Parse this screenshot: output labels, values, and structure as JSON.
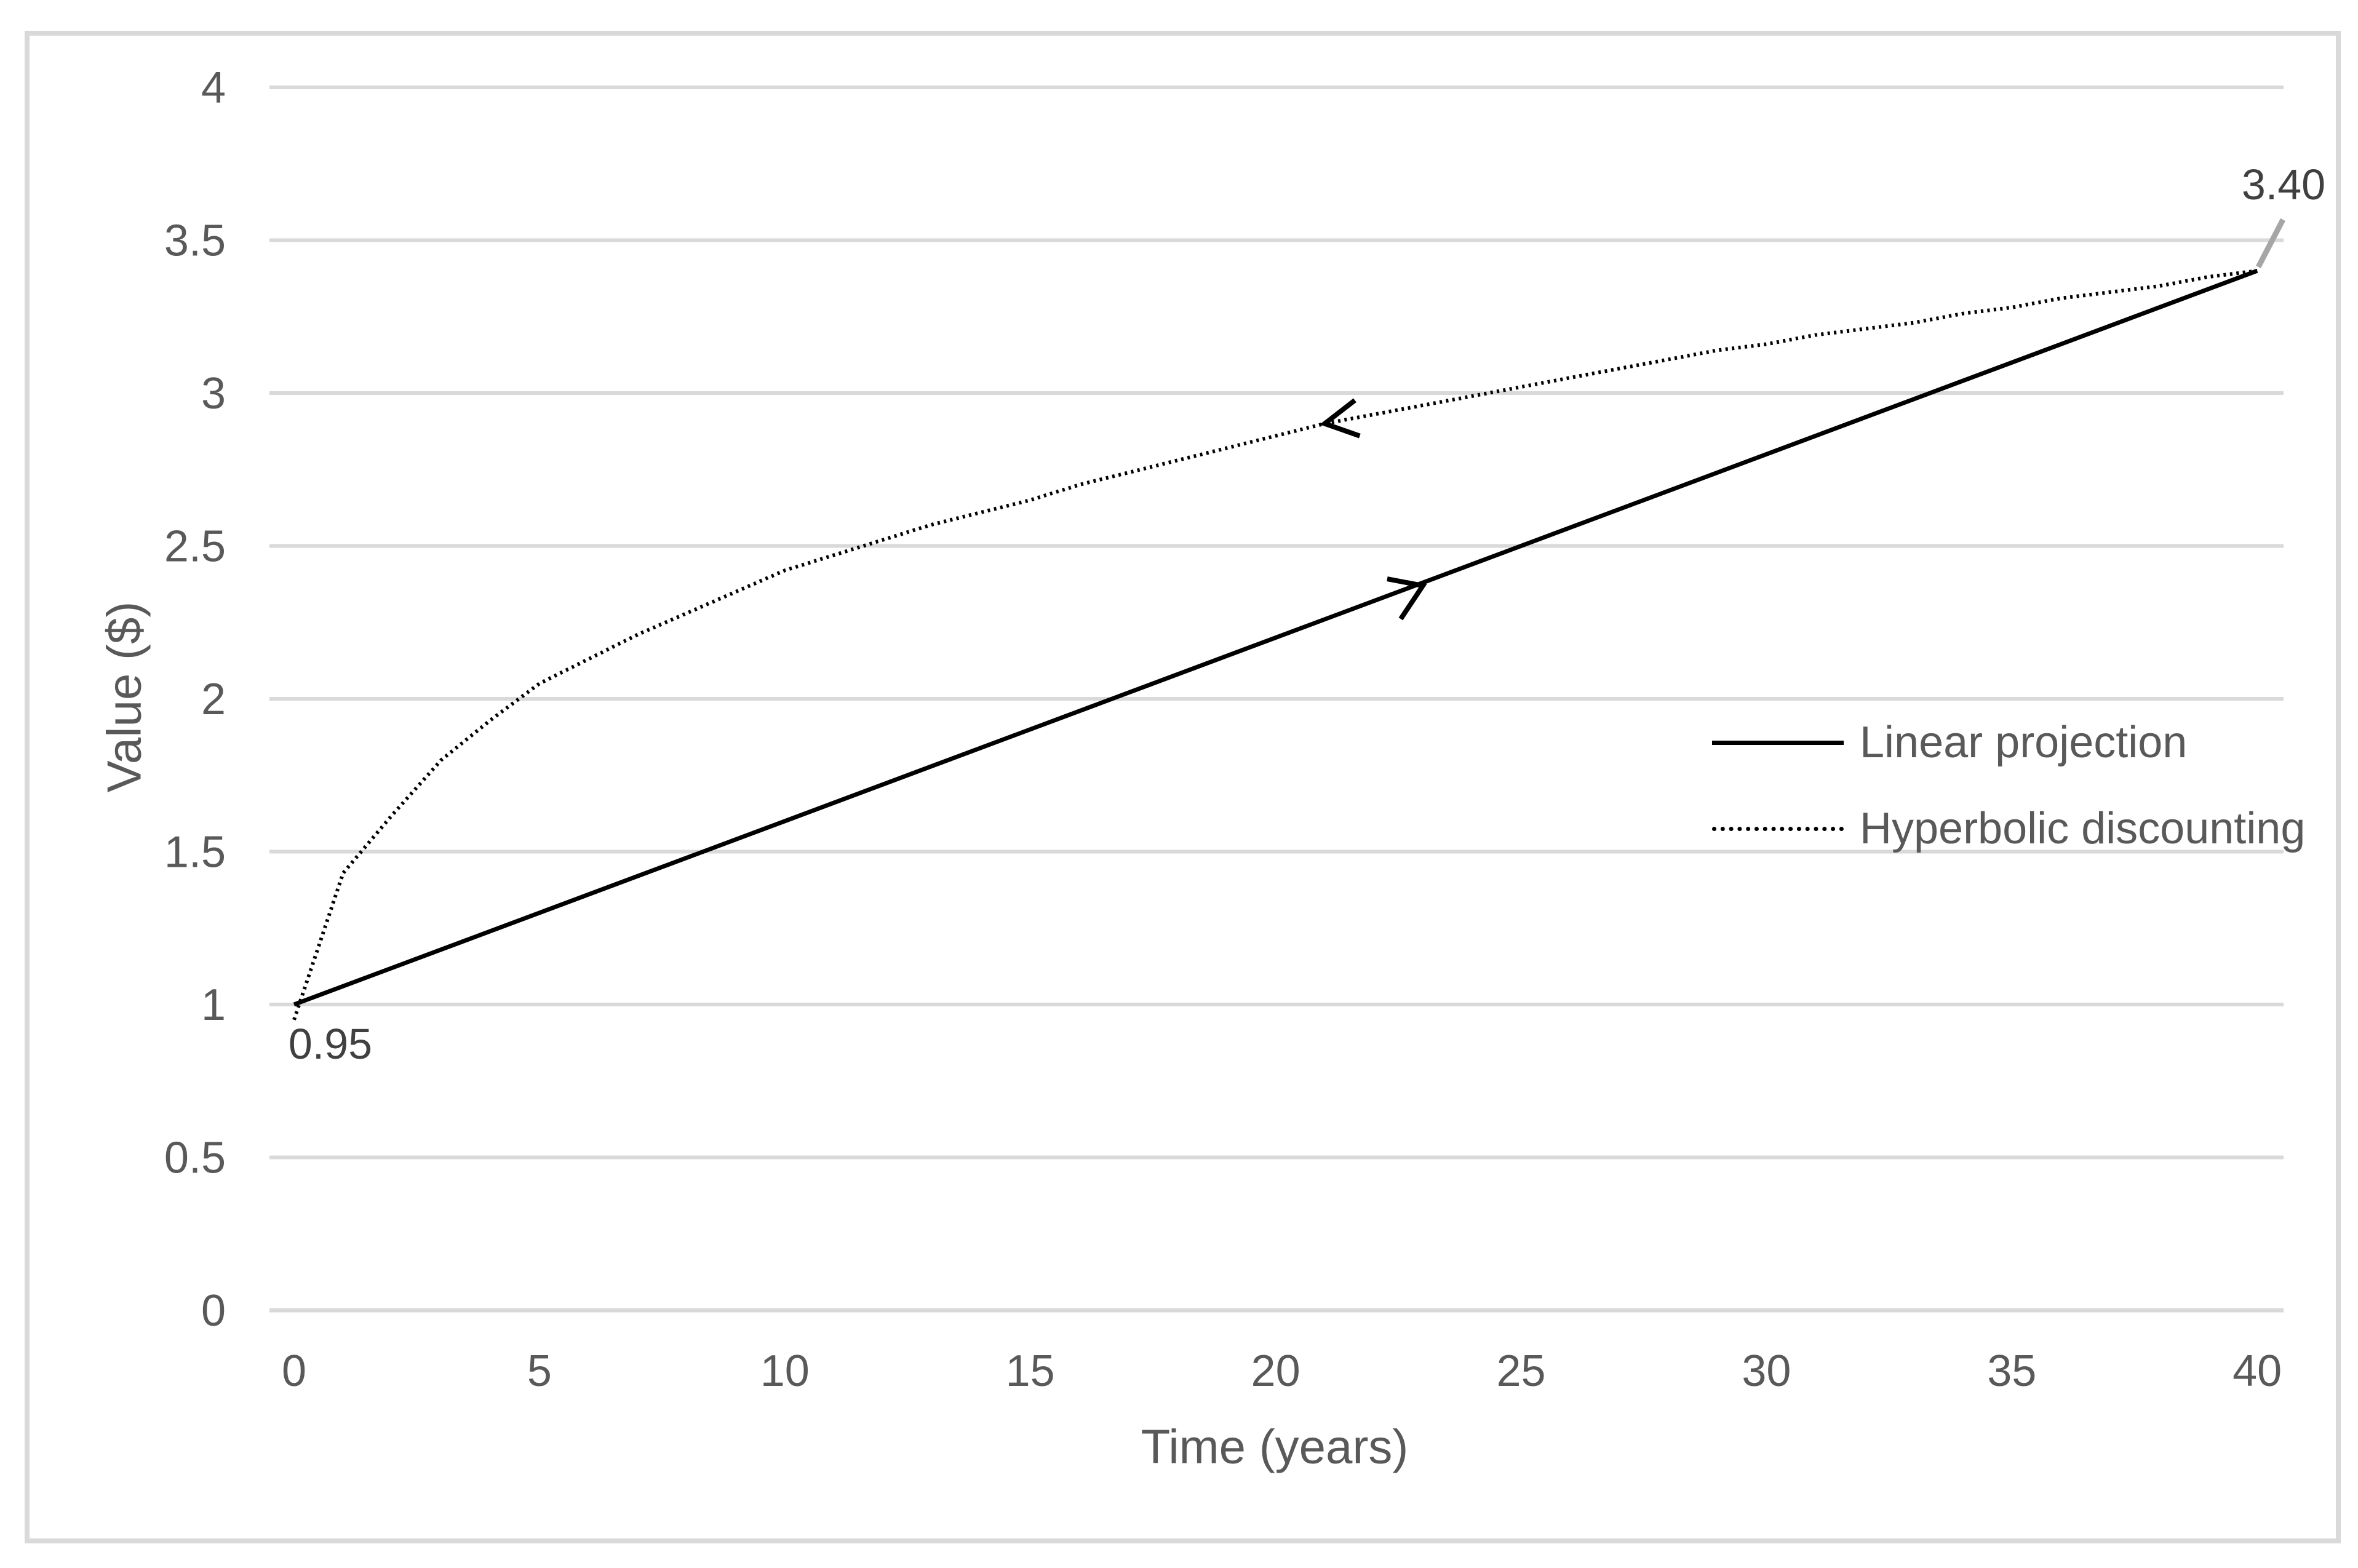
{
  "chart_data": {
    "type": "line",
    "title": "",
    "xlabel": "Time (years)",
    "ylabel": "Value ($)",
    "xlim": [
      -0.5,
      40.5
    ],
    "ylim": [
      0,
      4
    ],
    "x_ticks": [
      0,
      5,
      10,
      15,
      20,
      25,
      30,
      35,
      40
    ],
    "y_ticks": [
      0,
      0.5,
      1,
      1.5,
      2,
      2.5,
      3,
      3.5,
      4
    ],
    "grid": "horizontal",
    "legend_position": "middle-right",
    "series": [
      {
        "name": "Linear projection",
        "style": "solid",
        "color": "#000000",
        "x": [
          0,
          40
        ],
        "values": [
          1.0,
          3.4
        ]
      },
      {
        "name": "Hyperbolic discounting",
        "style": "dotted",
        "color": "#000000",
        "x": [
          0,
          1,
          2,
          3,
          4,
          5,
          6,
          7,
          8,
          9,
          10,
          11,
          12,
          13,
          14,
          15,
          16,
          17,
          18,
          19,
          20,
          21,
          22,
          23,
          24,
          25,
          26,
          27,
          28,
          29,
          30,
          31,
          32,
          33,
          34,
          35,
          36,
          37,
          38,
          39,
          40
        ],
        "values": [
          0.95,
          1.43,
          1.62,
          1.8,
          1.93,
          2.05,
          2.13,
          2.21,
          2.28,
          2.35,
          2.42,
          2.47,
          2.52,
          2.57,
          2.61,
          2.65,
          2.7,
          2.74,
          2.78,
          2.82,
          2.86,
          2.9,
          2.93,
          2.96,
          2.99,
          3.02,
          3.05,
          3.08,
          3.11,
          3.14,
          3.16,
          3.19,
          3.21,
          3.23,
          3.26,
          3.28,
          3.31,
          3.33,
          3.35,
          3.38,
          3.4
        ]
      }
    ],
    "point_labels": [
      {
        "text": "0.95",
        "series": "Hyperbolic discounting",
        "x": 0,
        "y": 0.95
      },
      {
        "text": "3.40",
        "series": "Hyperbolic discounting",
        "x": 40,
        "y": 3.4
      }
    ],
    "arrows": [
      {
        "series": "Hyperbolic discounting",
        "x": 21,
        "y": 2.9,
        "direction": "left"
      },
      {
        "series": "Linear projection",
        "x": 23,
        "y": 2.37,
        "direction": "right"
      }
    ],
    "colors": {
      "grid": "#d9d9d9",
      "frame": "#d9d9d9",
      "axis_text": "#595959",
      "data_label_text": "#404040",
      "leader_line": "#a6a6a6",
      "series_line": "#000000"
    }
  }
}
